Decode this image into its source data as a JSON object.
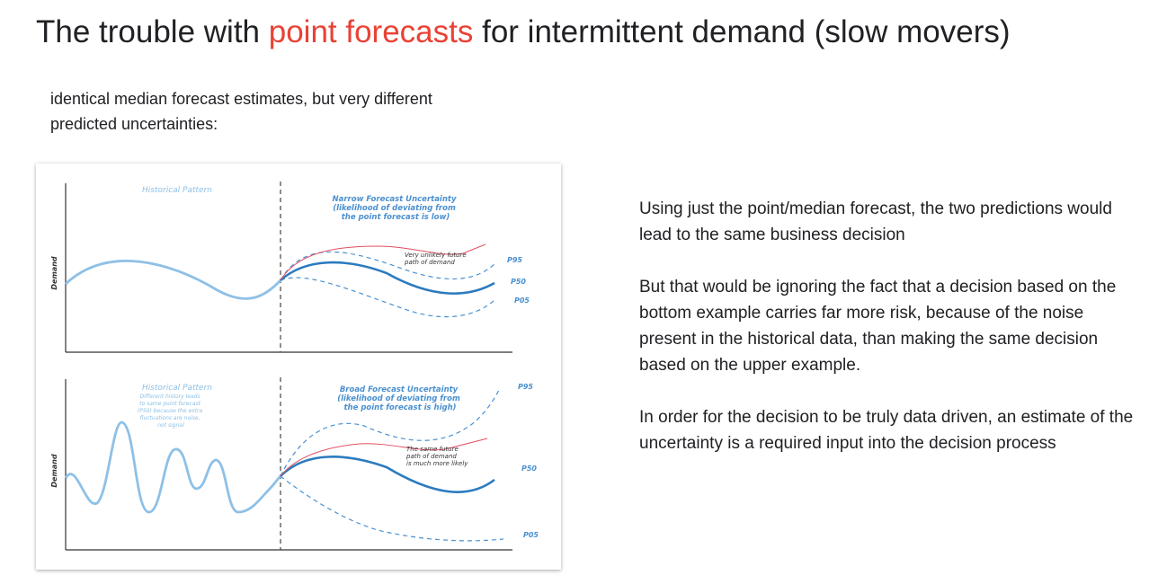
{
  "title": {
    "pre": "The trouble with ",
    "highlight": "point forecasts",
    "post": " for intermittent demand (slow movers)"
  },
  "subtitle": "identical median forecast estimates, but very different predicted uncertainties:",
  "figure": {
    "top": {
      "ylabel": "Demand",
      "history_label": "Historical Pattern",
      "uncertainty_title": [
        "Narrow Forecast Uncertainty",
        "(likelihood of deviating from",
        "the point forecast is low)"
      ],
      "future_label": [
        "Very unlikely future",
        "path of demand"
      ],
      "p95": "P95",
      "p50": "P50",
      "p05": "P05"
    },
    "bottom": {
      "ylabel": "Demand",
      "history_label": "Historical Pattern",
      "history_note": [
        "Different history leads",
        "to same point forecast",
        "(P50) because the extra",
        "fluctuations are noise,",
        "not signal"
      ],
      "uncertainty_title": [
        "Broad Forecast Uncertainty",
        "(likelihood of deviating from",
        "the point forecast is high)"
      ],
      "future_label": [
        "The same future",
        "path of demand",
        "is much more likely"
      ],
      "p95": "P95",
      "p50": "P50",
      "p05": "P05"
    },
    "colors": {
      "history": "#8ec0e6",
      "p50": "#2b7bbf",
      "band": "#4a90d0",
      "future_path": "#e05062",
      "label": "#4a90d0"
    }
  },
  "right_text": [
    "Using just the point/median forecast, the two predictions would lead to the same business decision",
    "But that would be ignoring the fact that a decision based on the bottom example carries far more risk, because of the noise present in the historical data, than making the same decision based on the upper example.",
    "In order for the decision to be truly data driven, an estimate of the uncertainty is a required input into the decision process"
  ]
}
